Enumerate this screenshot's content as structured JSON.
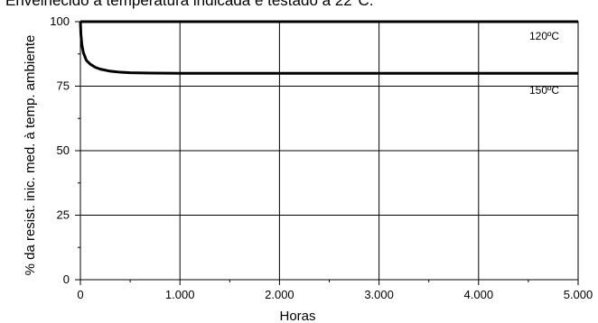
{
  "caption": "Envelhecido à temperatura indicada e testado a 22°C.",
  "chart_data": {
    "type": "line",
    "xlabel": "Horas",
    "ylabel": "% da resist. inic. med. à temp. ambiente",
    "xlim": [
      0,
      5000
    ],
    "ylim": [
      0,
      100
    ],
    "x_ticks": [
      0,
      1000,
      2000,
      3000,
      4000,
      5000
    ],
    "x_tick_labels": [
      "0",
      "1.000",
      "2.000",
      "3.000",
      "4.000",
      "5.000"
    ],
    "y_ticks": [
      0,
      25,
      50,
      75,
      100
    ],
    "y_tick_labels": [
      "0",
      "25",
      "50",
      "75",
      "100"
    ],
    "grid": true,
    "series": [
      {
        "name": "120ºC",
        "color": "#000000",
        "x": [
          0,
          5000
        ],
        "y": [
          100,
          100
        ]
      },
      {
        "name": "150ºC",
        "color": "#000000",
        "x": [
          0,
          5,
          15,
          30,
          60,
          100,
          150,
          200,
          300,
          400,
          500,
          700,
          1000,
          5000
        ],
        "y": [
          100,
          95,
          91,
          88,
          85,
          83.5,
          82.3,
          81.6,
          80.8,
          80.4,
          80.2,
          80.05,
          80,
          80
        ]
      }
    ]
  }
}
